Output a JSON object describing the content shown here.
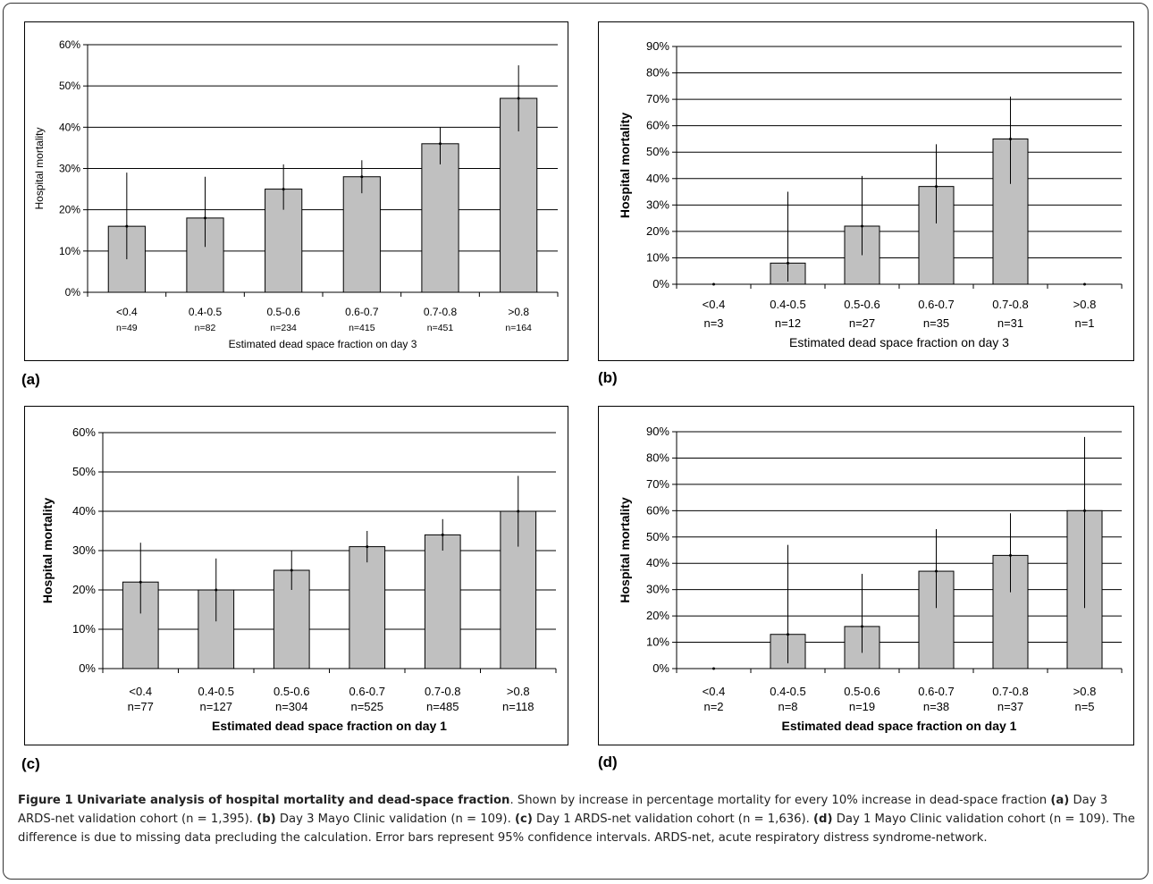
{
  "panel_labels": [
    "(a)",
    "(b)",
    "(c)",
    "(d)"
  ],
  "chart_data": [
    {
      "type": "bar",
      "categories": [
        "<0.4",
        "0.4-0.5",
        "0.5-0.6",
        "0.6-0.7",
        "0.7-0.8",
        ">0.8"
      ],
      "category_n": [
        "n=49",
        "n=82",
        "n=234",
        "n=415",
        "n=451",
        "n=164"
      ],
      "values": [
        16,
        18,
        25,
        28,
        36,
        47
      ],
      "error_low": [
        8,
        11,
        20,
        24,
        31,
        39
      ],
      "error_high": [
        29,
        28,
        31,
        32,
        40,
        55
      ],
      "ylim": [
        0,
        60
      ],
      "yticks": [
        "0%",
        "10%",
        "20%",
        "30%",
        "40%",
        "50%",
        "60%"
      ],
      "ylabel": "Hospital mortality",
      "xlabel": "Estimated dead space fraction on day 3",
      "grid": true,
      "bar_color": "#c0c0c0"
    },
    {
      "type": "bar",
      "categories": [
        "<0.4",
        "0.4-0.5",
        "0.5-0.6",
        "0.6-0.7",
        "0.7-0.8",
        ">0.8"
      ],
      "category_n": [
        "n=3",
        "n=12",
        "n=27",
        "n=35",
        "n=31",
        "n=1"
      ],
      "values": [
        0,
        8,
        22,
        37,
        55,
        0
      ],
      "error_low": [
        0,
        1,
        11,
        23,
        38,
        0
      ],
      "error_high": [
        0,
        35,
        41,
        53,
        71,
        0
      ],
      "ylim": [
        0,
        90
      ],
      "yticks": [
        "0%",
        "10%",
        "20%",
        "30%",
        "40%",
        "50%",
        "60%",
        "70%",
        "80%",
        "90%"
      ],
      "ylabel": "Hospital mortality",
      "xlabel": "Estimated dead space fraction on day 3",
      "grid": true,
      "bar_color": "#c0c0c0"
    },
    {
      "type": "bar",
      "categories": [
        "<0.4",
        "0.4-0.5",
        "0.5-0.6",
        "0.6-0.7",
        "0.7-0.8",
        ">0.8"
      ],
      "category_n": [
        "n=77",
        "n=127",
        "n=304",
        "n=525",
        "n=485",
        "n=118"
      ],
      "values": [
        22,
        20,
        25,
        31,
        34,
        40
      ],
      "error_low": [
        14,
        12,
        20,
        27,
        30,
        31
      ],
      "error_high": [
        32,
        28,
        30,
        35,
        38,
        49
      ],
      "ylim": [
        0,
        60
      ],
      "yticks": [
        "0%",
        "10%",
        "20%",
        "30%",
        "40%",
        "50%",
        "60%"
      ],
      "ylabel": "Hospital mortality",
      "xlabel": "Estimated dead space fraction on day 1",
      "grid": true,
      "bar_color": "#c0c0c0"
    },
    {
      "type": "bar",
      "categories": [
        "<0.4",
        "0.4-0.5",
        "0.5-0.6",
        "0.6-0.7",
        "0.7-0.8",
        ">0.8"
      ],
      "category_n": [
        "n=2",
        "n=8",
        "n=19",
        "n=38",
        "n=37",
        "n=5"
      ],
      "values": [
        0,
        13,
        16,
        37,
        43,
        60
      ],
      "error_low": [
        0,
        2,
        6,
        23,
        29,
        23
      ],
      "error_high": [
        0,
        47,
        36,
        53,
        59,
        88
      ],
      "ylim": [
        0,
        90
      ],
      "yticks": [
        "0%",
        "10%",
        "20%",
        "30%",
        "40%",
        "50%",
        "60%",
        "70%",
        "80%",
        "90%"
      ],
      "ylabel": "Hospital mortality",
      "xlabel": "Estimated dead space fraction on day 1",
      "grid": true,
      "bar_color": "#c0c0c0"
    }
  ],
  "caption": {
    "title": "Figure 1 Univariate analysis of hospital mortality and dead-space fraction",
    "t1": ". Shown by increase in percentage mortality for every 10% increase in dead-space fraction ",
    "la": "(a)",
    "t2": " Day 3 ARDS-net validation cohort (n = 1,395). ",
    "lb": "(b)",
    "t3": " Day 3 Mayo Clinic validation (n = 109). ",
    "lc": "(c)",
    "t4": " Day 1 ARDS-net validation cohort (n = 1,636). ",
    "ld": "(d)",
    "t5": " Day 1 Mayo Clinic validation cohort (n = 109). The difference is due to missing data precluding the calculation. Error bars represent 95% confidence intervals. ARDS-net, acute respiratory distress syndrome-network."
  }
}
